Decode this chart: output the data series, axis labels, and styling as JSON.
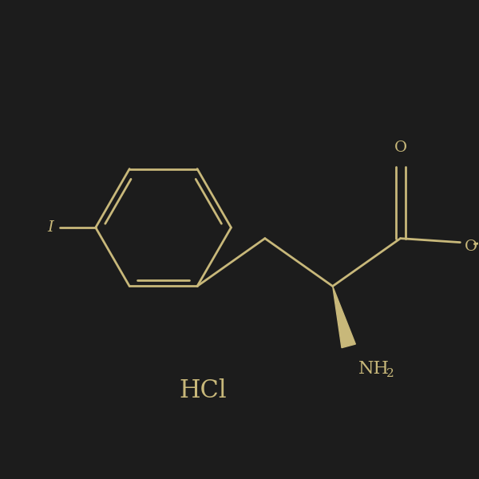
{
  "bg_color": "#1c1c1c",
  "line_color": "#c8b87a",
  "text_color": "#c8b87a",
  "fig_size": [
    6.0,
    6.0
  ],
  "dpi": 100,
  "hcl_label": "HCl",
  "nh2_label": "NH",
  "nh2_sub": "2",
  "o_carbonyl": "O",
  "o_ester": "O",
  "i_label": "I"
}
